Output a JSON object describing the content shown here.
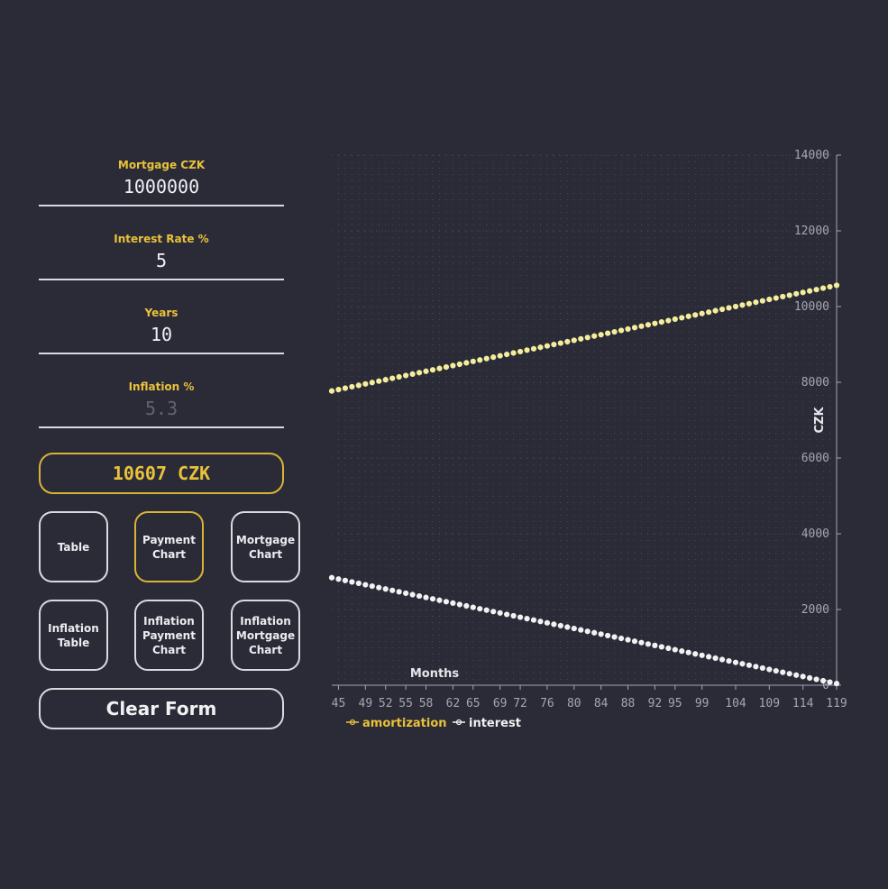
{
  "form": {
    "mortgage": {
      "label": "Mortgage CZK",
      "value": "1000000"
    },
    "interest": {
      "label": "Interest Rate %",
      "value": "5"
    },
    "years": {
      "label": "Years",
      "value": "10"
    },
    "inflation": {
      "label": "Inflation %",
      "placeholder": "5.3"
    }
  },
  "result": {
    "text": "10607 CZK"
  },
  "buttons": {
    "table": "Table",
    "payment_chart": "Payment\nChart",
    "mortgage_chart": "Mortgage\nChart",
    "inflation_table": "Inflation\nTable",
    "inflation_payment_chart": "Inflation\nPayment\nChart",
    "inflation_mortgage_chart": "Inflation\nMortgage\nChart",
    "clear": "Clear Form"
  },
  "colors": {
    "accent": "#e9c23a",
    "amortization": "#f4ee9c",
    "interest": "#f2f2f2",
    "background": "#2b2b38"
  },
  "chart_data": {
    "type": "line",
    "xlabel": "Months",
    "ylabel": "CZK",
    "x_range": [
      44,
      119
    ],
    "ylim": [
      0,
      14000
    ],
    "y_ticks": [
      0,
      2000,
      4000,
      6000,
      8000,
      10000,
      12000,
      14000
    ],
    "x_tick_labels": [
      "45",
      "49",
      "52",
      "55",
      "58",
      "62",
      "65",
      "69",
      "72",
      "76",
      "80",
      "84",
      "88",
      "92",
      "95",
      "99",
      "104",
      "109",
      "114",
      "119"
    ],
    "grid": true,
    "legend_position": "bottom-left",
    "series": [
      {
        "name": "amortization",
        "x_start": 44,
        "x_end": 119,
        "values_start": 7770,
        "values_end": 10560
      },
      {
        "name": "interest",
        "x_start": 44,
        "x_end": 119,
        "values_start": 2840,
        "values_end": 44
      }
    ]
  }
}
